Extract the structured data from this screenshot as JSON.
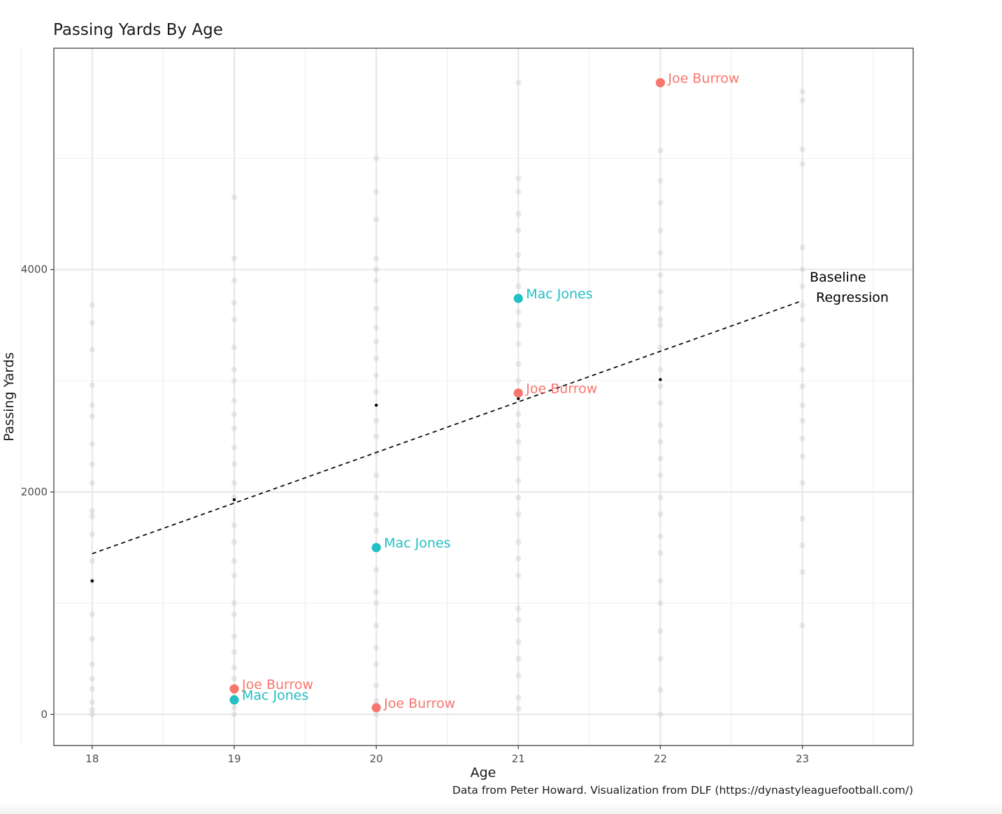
{
  "chart_data": {
    "type": "scatter",
    "title": "Passing Yards By Age",
    "xlabel": "Age",
    "ylabel": "Passing Yards",
    "caption": "Data from Peter Howard. Visualization from DLF (https://dynastyleaguefootball.com/)",
    "xlim": [
      17.73,
      23.78
    ],
    "ylim": [
      -280,
      5990
    ],
    "x_ticks": [
      18,
      19,
      20,
      21,
      22,
      23
    ],
    "y_ticks": [
      0,
      2000,
      4000
    ],
    "grid": true,
    "colors": {
      "joe_burrow": "#F8766D",
      "mac_jones": "#22BFC4",
      "background_points": "#bdbdbd",
      "regression": "#000000"
    },
    "regression": {
      "label_line1": "Baseline",
      "label_line2": "Regression",
      "x": [
        18,
        23
      ],
      "y": [
        1445,
        3720
      ]
    },
    "age_means": [
      {
        "x": 18,
        "y": 1200
      },
      {
        "x": 19,
        "y": 1930
      },
      {
        "x": 20,
        "y": 2780
      },
      {
        "x": 21,
        "y": 2840
      },
      {
        "x": 22,
        "y": 3010
      }
    ],
    "highlighted_series": [
      {
        "name": "Joe Burrow",
        "color": "#F8766D",
        "points": [
          {
            "x": 19,
            "y": 230
          },
          {
            "x": 20,
            "y": 60
          },
          {
            "x": 21,
            "y": 2890
          },
          {
            "x": 22,
            "y": 5680
          }
        ]
      },
      {
        "name": "Mac Jones",
        "color": "#22BFC4",
        "points": [
          {
            "x": 19,
            "y": 130
          },
          {
            "x": 20,
            "y": 1500
          },
          {
            "x": 21,
            "y": 3740
          }
        ]
      }
    ],
    "background_points": [
      {
        "x": 18,
        "y": 0
      },
      {
        "x": 18,
        "y": 40
      },
      {
        "x": 18,
        "y": 110
      },
      {
        "x": 18,
        "y": 230
      },
      {
        "x": 18,
        "y": 320
      },
      {
        "x": 18,
        "y": 450
      },
      {
        "x": 18,
        "y": 680
      },
      {
        "x": 18,
        "y": 900
      },
      {
        "x": 18,
        "y": 1200
      },
      {
        "x": 18,
        "y": 1380
      },
      {
        "x": 18,
        "y": 1620
      },
      {
        "x": 18,
        "y": 1780
      },
      {
        "x": 18,
        "y": 1830
      },
      {
        "x": 18,
        "y": 2080
      },
      {
        "x": 18,
        "y": 2250
      },
      {
        "x": 18,
        "y": 2430
      },
      {
        "x": 18,
        "y": 2680
      },
      {
        "x": 18,
        "y": 2780
      },
      {
        "x": 18,
        "y": 2960
      },
      {
        "x": 18,
        "y": 3280
      },
      {
        "x": 18,
        "y": 3520
      },
      {
        "x": 18,
        "y": 3680
      },
      {
        "x": 19,
        "y": 0
      },
      {
        "x": 19,
        "y": 60
      },
      {
        "x": 19,
        "y": 160
      },
      {
        "x": 19,
        "y": 320
      },
      {
        "x": 19,
        "y": 420
      },
      {
        "x": 19,
        "y": 560
      },
      {
        "x": 19,
        "y": 700
      },
      {
        "x": 19,
        "y": 900
      },
      {
        "x": 19,
        "y": 1000
      },
      {
        "x": 19,
        "y": 1250
      },
      {
        "x": 19,
        "y": 1380
      },
      {
        "x": 19,
        "y": 1550
      },
      {
        "x": 19,
        "y": 1700
      },
      {
        "x": 19,
        "y": 1950
      },
      {
        "x": 19,
        "y": 2080
      },
      {
        "x": 19,
        "y": 2250
      },
      {
        "x": 19,
        "y": 2400
      },
      {
        "x": 19,
        "y": 2570
      },
      {
        "x": 19,
        "y": 2700
      },
      {
        "x": 19,
        "y": 2820
      },
      {
        "x": 19,
        "y": 3000
      },
      {
        "x": 19,
        "y": 3100
      },
      {
        "x": 19,
        "y": 3300
      },
      {
        "x": 19,
        "y": 3550
      },
      {
        "x": 19,
        "y": 3700
      },
      {
        "x": 19,
        "y": 3900
      },
      {
        "x": 19,
        "y": 4100
      },
      {
        "x": 19,
        "y": 4650
      },
      {
        "x": 20,
        "y": 0
      },
      {
        "x": 20,
        "y": 120
      },
      {
        "x": 20,
        "y": 260
      },
      {
        "x": 20,
        "y": 450
      },
      {
        "x": 20,
        "y": 600
      },
      {
        "x": 20,
        "y": 800
      },
      {
        "x": 20,
        "y": 1000
      },
      {
        "x": 20,
        "y": 1100
      },
      {
        "x": 20,
        "y": 1300
      },
      {
        "x": 20,
        "y": 1650
      },
      {
        "x": 20,
        "y": 1800
      },
      {
        "x": 20,
        "y": 1950
      },
      {
        "x": 20,
        "y": 2150
      },
      {
        "x": 20,
        "y": 2350
      },
      {
        "x": 20,
        "y": 2500
      },
      {
        "x": 20,
        "y": 2640
      },
      {
        "x": 20,
        "y": 2900
      },
      {
        "x": 20,
        "y": 3050
      },
      {
        "x": 20,
        "y": 3200
      },
      {
        "x": 20,
        "y": 3350
      },
      {
        "x": 20,
        "y": 3480
      },
      {
        "x": 20,
        "y": 3650
      },
      {
        "x": 20,
        "y": 3900
      },
      {
        "x": 20,
        "y": 4000
      },
      {
        "x": 20,
        "y": 4100
      },
      {
        "x": 20,
        "y": 4450
      },
      {
        "x": 20,
        "y": 4700
      },
      {
        "x": 20,
        "y": 5000
      },
      {
        "x": 21,
        "y": 50
      },
      {
        "x": 21,
        "y": 150
      },
      {
        "x": 21,
        "y": 350
      },
      {
        "x": 21,
        "y": 500
      },
      {
        "x": 21,
        "y": 650
      },
      {
        "x": 21,
        "y": 850
      },
      {
        "x": 21,
        "y": 950
      },
      {
        "x": 21,
        "y": 1250
      },
      {
        "x": 21,
        "y": 1400
      },
      {
        "x": 21,
        "y": 1550
      },
      {
        "x": 21,
        "y": 1800
      },
      {
        "x": 21,
        "y": 1950
      },
      {
        "x": 21,
        "y": 2100
      },
      {
        "x": 21,
        "y": 2300
      },
      {
        "x": 21,
        "y": 2450
      },
      {
        "x": 21,
        "y": 2600
      },
      {
        "x": 21,
        "y": 2700
      },
      {
        "x": 21,
        "y": 3000
      },
      {
        "x": 21,
        "y": 3150
      },
      {
        "x": 21,
        "y": 3330
      },
      {
        "x": 21,
        "y": 3500
      },
      {
        "x": 21,
        "y": 3620
      },
      {
        "x": 21,
        "y": 3850
      },
      {
        "x": 21,
        "y": 4000
      },
      {
        "x": 21,
        "y": 4130
      },
      {
        "x": 21,
        "y": 4350
      },
      {
        "x": 21,
        "y": 4500
      },
      {
        "x": 21,
        "y": 4700
      },
      {
        "x": 21,
        "y": 4820
      },
      {
        "x": 21,
        "y": 5680
      },
      {
        "x": 22,
        "y": 0
      },
      {
        "x": 22,
        "y": 220
      },
      {
        "x": 22,
        "y": 500
      },
      {
        "x": 22,
        "y": 750
      },
      {
        "x": 22,
        "y": 1000
      },
      {
        "x": 22,
        "y": 1200
      },
      {
        "x": 22,
        "y": 1450
      },
      {
        "x": 22,
        "y": 1600
      },
      {
        "x": 22,
        "y": 1800
      },
      {
        "x": 22,
        "y": 1950
      },
      {
        "x": 22,
        "y": 2150
      },
      {
        "x": 22,
        "y": 2300
      },
      {
        "x": 22,
        "y": 2450
      },
      {
        "x": 22,
        "y": 2600
      },
      {
        "x": 22,
        "y": 2800
      },
      {
        "x": 22,
        "y": 2950
      },
      {
        "x": 22,
        "y": 3100
      },
      {
        "x": 22,
        "y": 3300
      },
      {
        "x": 22,
        "y": 3500
      },
      {
        "x": 22,
        "y": 3550
      },
      {
        "x": 22,
        "y": 3650
      },
      {
        "x": 22,
        "y": 3800
      },
      {
        "x": 22,
        "y": 3950
      },
      {
        "x": 22,
        "y": 4150
      },
      {
        "x": 22,
        "y": 4350
      },
      {
        "x": 22,
        "y": 4600
      },
      {
        "x": 22,
        "y": 4800
      },
      {
        "x": 22,
        "y": 5070
      },
      {
        "x": 23,
        "y": 800
      },
      {
        "x": 23,
        "y": 1280
      },
      {
        "x": 23,
        "y": 1520
      },
      {
        "x": 23,
        "y": 1760
      },
      {
        "x": 23,
        "y": 2080
      },
      {
        "x": 23,
        "y": 2320
      },
      {
        "x": 23,
        "y": 2480
      },
      {
        "x": 23,
        "y": 2640
      },
      {
        "x": 23,
        "y": 2780
      },
      {
        "x": 23,
        "y": 2950
      },
      {
        "x": 23,
        "y": 3100
      },
      {
        "x": 23,
        "y": 3320
      },
      {
        "x": 23,
        "y": 3550
      },
      {
        "x": 23,
        "y": 3680
      },
      {
        "x": 23,
        "y": 3850
      },
      {
        "x": 23,
        "y": 4000
      },
      {
        "x": 23,
        "y": 4200
      },
      {
        "x": 23,
        "y": 4950
      },
      {
        "x": 23,
        "y": 5080
      },
      {
        "x": 23,
        "y": 5520
      },
      {
        "x": 23,
        "y": 5600
      }
    ]
  }
}
